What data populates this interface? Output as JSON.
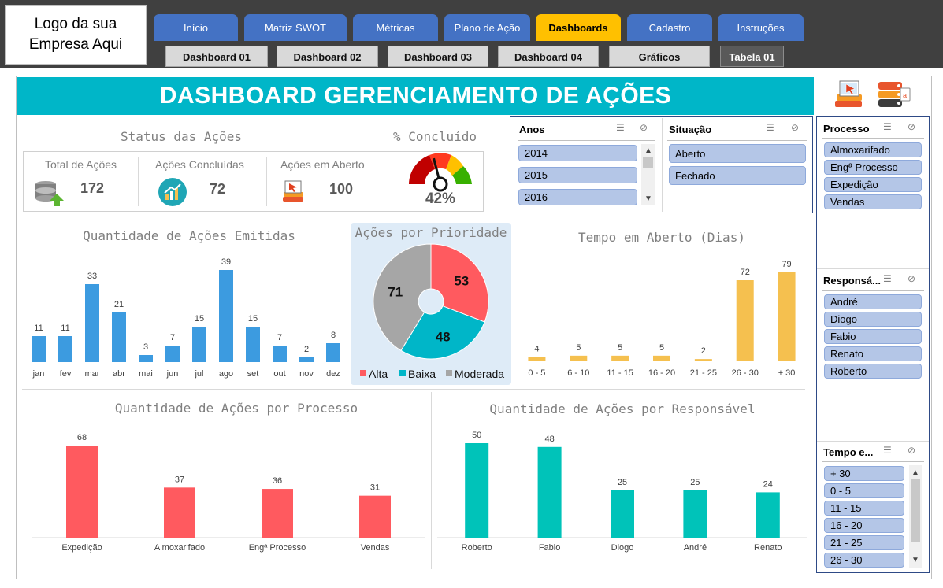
{
  "logo": {
    "line1": "Logo da sua",
    "line2": "Empresa Aqui"
  },
  "tabs": [
    {
      "label": "Início"
    },
    {
      "label": "Matriz SWOT"
    },
    {
      "label": "Métricas"
    },
    {
      "label": "Plano de Ação"
    },
    {
      "label": "Dashboards",
      "active": true
    },
    {
      "label": "Cadastro"
    },
    {
      "label": "Instruções"
    }
  ],
  "subtabs": [
    {
      "label": "Dashboard 01"
    },
    {
      "label": "Dashboard 02"
    },
    {
      "label": "Dashboard 03"
    },
    {
      "label": "Dashboard 04"
    },
    {
      "label": "Gráficos"
    },
    {
      "label": "Tabela 01"
    }
  ],
  "banner": {
    "title": "DASHBOARD GERENCIAMENTO DE AÇÕES"
  },
  "status": {
    "title": "Status das Ações",
    "total_label": "Total de Ações",
    "total_value": "172",
    "concluded_label": "Ações Concluídas",
    "concluded_value": "72",
    "open_label": "Ações em Aberto",
    "open_value": "100"
  },
  "gauge": {
    "title": "% Concluído",
    "value_text": "42%",
    "value": 0.42
  },
  "slicers": {
    "anos": {
      "title": "Anos",
      "items": [
        "2014",
        "2015",
        "2016"
      ]
    },
    "situacao": {
      "title": "Situação",
      "items": [
        "Aberto",
        "Fechado"
      ]
    },
    "processo": {
      "title": "Processo",
      "items": [
        "Almoxarifado",
        "Engª Processo",
        "Expedição",
        "Vendas"
      ]
    },
    "responsavel": {
      "title": "Responsá...",
      "items": [
        "André",
        "Diogo",
        "Fabio",
        "Renato",
        "Roberto"
      ]
    },
    "tempo": {
      "title": "Tempo e...",
      "items": [
        "+ 30",
        "0 - 5",
        "11 - 15",
        "16 - 20",
        "21 - 25",
        "26 - 30"
      ]
    }
  },
  "colors": {
    "accent": "#00b6c8",
    "blue_bar": "#3c9be0",
    "gold_bar": "#f5c04f",
    "red_bar": "#ff5a5f",
    "teal_bar": "#00c3b9",
    "tab_blue": "#4472c4",
    "tab_active": "#ffc000"
  },
  "chart_data": [
    {
      "type": "bar",
      "title": "Quantidade de Ações Emitidas",
      "categories": [
        "jan",
        "fev",
        "mar",
        "abr",
        "mai",
        "jun",
        "jul",
        "ago",
        "set",
        "out",
        "nov",
        "dez"
      ],
      "values": [
        11,
        11,
        33,
        21,
        3,
        7,
        15,
        39,
        15,
        7,
        2,
        8
      ]
    },
    {
      "type": "pie",
      "title": "Ações por Prioridade",
      "categories": [
        "Alta",
        "Baixa",
        "Moderada"
      ],
      "values": [
        53,
        48,
        71
      ],
      "colors": [
        "#ff5a5f",
        "#00b6c8",
        "#a6a6a6"
      ],
      "legend": "bottom"
    },
    {
      "type": "bar",
      "title": "Tempo em Aberto (Dias)",
      "categories": [
        "0 - 5",
        "6 - 10",
        "11 - 15",
        "16 - 20",
        "21 - 25",
        "26 - 30",
        "+ 30"
      ],
      "values": [
        4,
        5,
        5,
        5,
        2,
        72,
        79
      ]
    },
    {
      "type": "bar",
      "title": "Quantidade de Ações por Processo",
      "categories": [
        "Expedição",
        "Almoxarifado",
        "Engª Processo",
        "Vendas"
      ],
      "values": [
        68,
        37,
        36,
        31
      ]
    },
    {
      "type": "bar",
      "title": "Quantidade de Ações por Responsável",
      "categories": [
        "Roberto",
        "Fabio",
        "Diogo",
        "André",
        "Renato"
      ],
      "values": [
        50,
        48,
        25,
        25,
        24
      ]
    }
  ]
}
